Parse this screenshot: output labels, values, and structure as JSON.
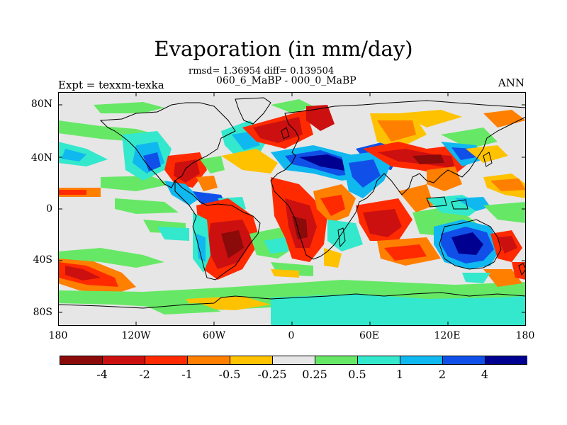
{
  "title": "Evaporation (in mm/day)",
  "stats_line": "rmsd= 1.36954 diff= 0.139504",
  "cases_line": "060_6_MaBP - 000_0_MaBP",
  "left_label": "Expt = texxm-texka",
  "right_label": "ANN",
  "lat_ticks": [
    "80N",
    "40N",
    "0",
    "40S",
    "80S"
  ],
  "lon_ticks": [
    "180",
    "120W",
    "60W",
    "0",
    "60E",
    "120E",
    "180"
  ],
  "colorbar": {
    "labels": [
      "-4",
      "-2",
      "-1",
      "-0.5",
      "-0.25",
      "0.25",
      "0.5",
      "1",
      "2",
      "4"
    ],
    "colors": [
      "#8b0a0a",
      "#cc1010",
      "#ff2a00",
      "#ff7f00",
      "#ffc200",
      "#e6e6e6",
      "#66e866",
      "#33e8cc",
      "#10b8f0",
      "#1050e8",
      "#000090"
    ]
  },
  "colors": {
    "background": "#e6e6e6",
    "coast": "#000000"
  }
}
